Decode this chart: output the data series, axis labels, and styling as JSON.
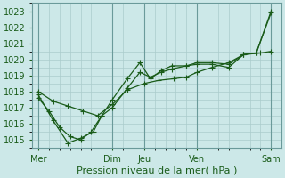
{
  "title": "",
  "xlabel": "Pression niveau de la mer( hPa )",
  "ylabel": "",
  "bg_color": "#cce8e8",
  "grid_color": "#aacccc",
  "line_color": "#1a5c1a",
  "ylim": [
    1014.5,
    1023.5
  ],
  "yticks": [
    1015,
    1016,
    1017,
    1018,
    1019,
    1020,
    1021,
    1022,
    1023
  ],
  "day_labels": [
    "Mer",
    "Dim",
    "Jeu",
    "Ven",
    "Sam"
  ],
  "day_positions": [
    0,
    3.5,
    5.0,
    7.5,
    11.0
  ],
  "series1_x": [
    0,
    0.7,
    1.4,
    2.1,
    2.8,
    3.5,
    4.2,
    5.0,
    5.7,
    6.4,
    7.0,
    7.5,
    8.2,
    9.0,
    9.7,
    10.5,
    11.0
  ],
  "series1_y": [
    1018.0,
    1017.4,
    1017.1,
    1016.8,
    1016.5,
    1017.2,
    1018.1,
    1018.5,
    1018.7,
    1018.8,
    1018.9,
    1019.2,
    1019.5,
    1019.8,
    1020.3,
    1020.4,
    1020.5
  ],
  "series2_x": [
    0,
    0.5,
    1.0,
    1.5,
    2.0,
    2.5,
    3.0,
    3.5,
    4.2,
    4.8,
    5.3,
    5.8,
    6.3,
    7.0,
    7.5,
    8.2,
    9.0,
    9.7,
    10.3,
    11.0
  ],
  "series2_y": [
    1017.6,
    1016.8,
    1015.8,
    1015.2,
    1015.0,
    1015.5,
    1016.5,
    1017.5,
    1018.8,
    1019.8,
    1018.8,
    1019.3,
    1019.6,
    1019.6,
    1019.8,
    1019.8,
    1019.7,
    1020.3,
    1020.4,
    1022.9
  ],
  "series3_x": [
    0,
    0.7,
    1.4,
    2.0,
    2.6,
    3.0,
    3.5,
    4.2,
    4.8,
    5.3,
    5.8,
    6.3,
    7.0,
    7.5,
    8.2,
    9.0,
    9.7,
    10.3,
    11.0
  ],
  "series3_y": [
    1017.8,
    1016.2,
    1014.8,
    1015.1,
    1015.5,
    1016.5,
    1017.0,
    1018.2,
    1019.2,
    1018.9,
    1019.2,
    1019.4,
    1019.6,
    1019.7,
    1019.7,
    1019.5,
    1020.3,
    1020.4,
    1023.0
  ],
  "text_color": "#1a5c1a",
  "xlabel_fontsize": 8,
  "tick_fontsize": 7,
  "line_width": 0.9,
  "marker_size": 2.5
}
